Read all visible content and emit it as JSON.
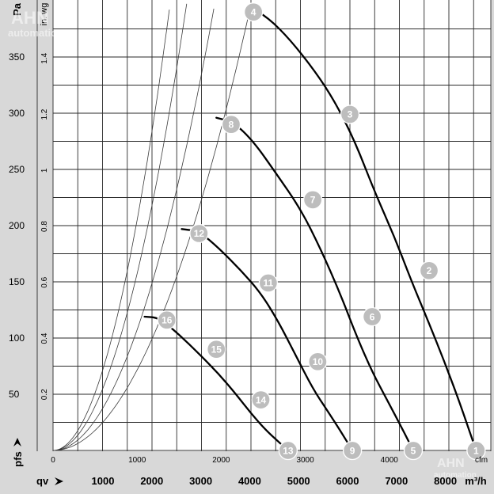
{
  "chart_data": {
    "type": "line",
    "x": {
      "unit": "m³/h",
      "label": "qv",
      "lim": [
        0,
        8600
      ],
      "ticks": [
        1000,
        2000,
        3000,
        4000,
        5000,
        6000,
        7000,
        8000
      ],
      "tick_labels": [
        "1000",
        "2000",
        "3000",
        "4000",
        "5000",
        "6000",
        "7000",
        "8000"
      ]
    },
    "x_secondary": {
      "unit": "cfm",
      "ticks": [
        0,
        1000,
        2000,
        3000,
        4000
      ],
      "tick_labels": [
        "0",
        "1000",
        "2000",
        "3000",
        "4000"
      ]
    },
    "y": {
      "unit": "Pa",
      "label": "pfs",
      "lim": [
        0,
        395
      ],
      "ticks": [
        50,
        100,
        150,
        200,
        250,
        300,
        350
      ],
      "tick_labels": [
        "50",
        "100",
        "150",
        "200",
        "250",
        "300",
        "350"
      ]
    },
    "y_secondary": {
      "unit": "in. wg",
      "ticks": [
        0.2,
        0.4,
        0.6,
        0.8,
        1,
        1.2,
        1.4
      ],
      "tick_labels": [
        "0.2",
        "0.4",
        "0.6",
        "0.8",
        "1",
        "1.2",
        "1.4"
      ]
    },
    "grid": true,
    "fan_curves": [
      {
        "x": [
          3950,
          4350,
          4800,
          5300,
          5700,
          6100,
          6500,
          6900,
          7250,
          7600,
          7900,
          8200,
          8550
        ],
        "y": [
          395,
          385,
          365,
          337,
          310,
          275,
          230,
          190,
          150,
          113,
          80,
          45,
          0
        ]
      },
      {
        "x": [
          3300,
          3650,
          4050,
          4500,
          5000,
          5400,
          5800,
          6150,
          6450,
          6750,
          7050,
          7280
        ],
        "y": [
          296,
          292,
          275,
          247,
          215,
          180,
          140,
          100,
          70,
          45,
          20,
          0
        ]
      },
      {
        "x": [
          2600,
          2950,
          3350,
          3800,
          4200,
          4550,
          4900,
          5250,
          5550,
          5800,
          6050
        ],
        "y": [
          197,
          195,
          180,
          160,
          140,
          115,
          85,
          55,
          35,
          18,
          0
        ]
      },
      {
        "x": [
          1850,
          2150,
          2550,
          2950,
          3350,
          3700,
          4000,
          4300,
          4550,
          4750
        ],
        "y": [
          119,
          118,
          103,
          86,
          68,
          50,
          33,
          18,
          8,
          0
        ]
      }
    ],
    "system_curves": [
      {
        "k": 2.48e-05
      },
      {
        "k": 3.72e-05
      },
      {
        "k": 5.45e-05
      },
      {
        "k": 7.1e-05
      }
    ],
    "operating_points": [
      {
        "label": "1",
        "x": 8550,
        "y": 0
      },
      {
        "label": "2",
        "x": 7600,
        "y": 160
      },
      {
        "label": "3",
        "x": 6000,
        "y": 299
      },
      {
        "label": "4",
        "x": 4050,
        "y": 390
      },
      {
        "label": "5",
        "x": 7280,
        "y": 0
      },
      {
        "label": "6",
        "x": 6450,
        "y": 119
      },
      {
        "label": "7",
        "x": 5250,
        "y": 223
      },
      {
        "label": "8",
        "x": 3600,
        "y": 290
      },
      {
        "label": "9",
        "x": 6050,
        "y": 0
      },
      {
        "label": "10",
        "x": 5350,
        "y": 79
      },
      {
        "label": "11",
        "x": 4350,
        "y": 149
      },
      {
        "label": "12",
        "x": 2950,
        "y": 193
      },
      {
        "label": "13",
        "x": 4750,
        "y": 0
      },
      {
        "label": "14",
        "x": 4200,
        "y": 45
      },
      {
        "label": "15",
        "x": 3300,
        "y": 90
      },
      {
        "label": "16",
        "x": 2300,
        "y": 116
      }
    ],
    "watermark": "AHN automation"
  }
}
